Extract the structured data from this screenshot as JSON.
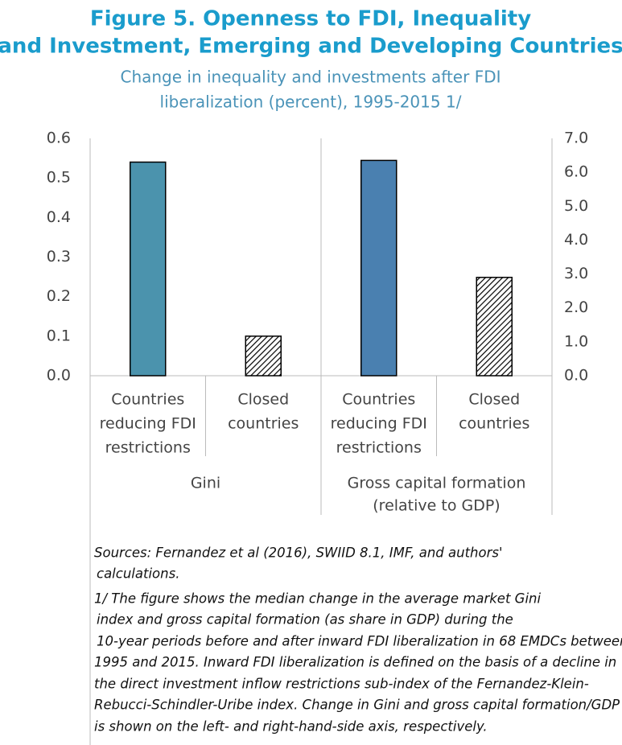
{
  "chart_data": {
    "type": "bar",
    "title": [
      "Figure 5. Openness to FDI, Inequality",
      "and Investment, Emerging and Developing Countries"
    ],
    "subtitle": [
      "Change in inequality and investments after FDI",
      "liberalization (percent), 1995-2015 1/"
    ],
    "categories": [
      [
        "Countries",
        "reducing FDI",
        "restrictions"
      ],
      [
        "Closed",
        "countries"
      ],
      [
        "Countries",
        "reducing FDI",
        "restrictions"
      ],
      [
        "Closed",
        "countries"
      ]
    ],
    "group_labels": [
      [
        "Gini"
      ],
      [
        "Gross capital formation",
        "(relative to GDP)"
      ]
    ],
    "values": [
      0.54,
      0.1,
      6.35,
      2.9
    ],
    "axes": [
      "y",
      "y",
      "y2",
      "y2"
    ],
    "colors": [
      "#4b93ad",
      "hatch",
      "#4a80b0",
      "hatch"
    ],
    "ylim": [
      0,
      0.6
    ],
    "yticks": [
      {
        "value": 0,
        "label": "0.0"
      },
      0.1,
      0.2,
      0.3,
      0.4,
      0.5,
      0.6
    ],
    "y2lim": [
      0,
      7
    ],
    "y2ticks": [
      {
        "value": 0,
        "label": "0.0"
      },
      {
        "value": 1,
        "label": "1.0"
      },
      {
        "value": 2,
        "label": "2.0"
      },
      {
        "value": 3,
        "label": "3.0"
      },
      {
        "value": 4,
        "label": "4.0"
      },
      {
        "value": 5,
        "label": "5.0"
      },
      {
        "value": 6,
        "label": "6.0"
      },
      {
        "value": 7,
        "label": "7.0"
      }
    ],
    "notes": [
      "Sources: Fernandez et al (2016), SWIID 8.1, IMF, and authors'",
      "calculations.",
      "1/ The figure shows the median change in the average market Gini",
      "index and gross capital formation (as share in GDP) during the",
      "10-year periods before and after inward FDI liberalization in 68 EMDCs between",
      "1995 and 2015. Inward FDI liberalization is defined on the basis of a decline in",
      "the direct investment inflow restrictions sub-index of the Fernandez-Klein-",
      "Rebucci-Schindler-Uribe index. Change in Gini and gross capital formation/GDP",
      "is shown on the left- and right-hand-side axis, respectively."
    ]
  }
}
